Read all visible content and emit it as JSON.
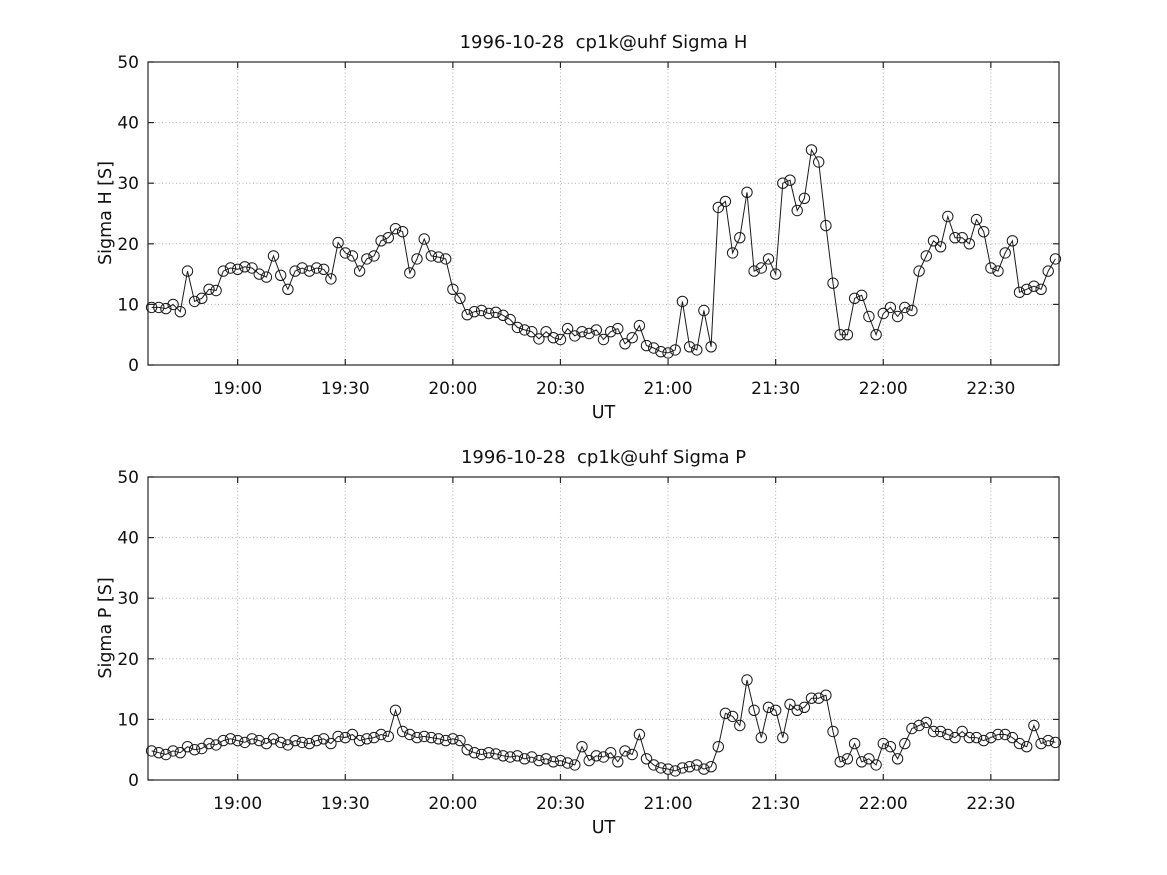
{
  "figure": {
    "background": "#ffffff",
    "text_color": "#111111"
  },
  "chart_data": [
    {
      "type": "line",
      "title": "1996-10-28  cp1k@uhf Sigma H",
      "xlabel": "UT",
      "ylabel": "Sigma H [S]",
      "ylim": [
        0,
        50
      ],
      "yticks": [
        0,
        10,
        20,
        30,
        40,
        50
      ],
      "xlim_min": [
        1115,
        1369
      ],
      "xticks_min": [
        1140,
        1170,
        1200,
        1230,
        1260,
        1290,
        1320,
        1350
      ],
      "xtick_labels": [
        "19:00",
        "19:30",
        "20:00",
        "20:30",
        "21:00",
        "21:30",
        "22:00",
        "22:30"
      ],
      "x_start_min": 1116,
      "x_step_min": 2,
      "grid": true,
      "legend": "none",
      "marker": "open-circle",
      "line_color": "#1a1a1a",
      "axis_color": "#262626",
      "grid_color": "#b0b0b0",
      "values": [
        9.5,
        9.5,
        9.3,
        10,
        8.8,
        15.5,
        10.5,
        11,
        12.5,
        12.3,
        15.5,
        16,
        15.8,
        16.2,
        16,
        15,
        14.5,
        18,
        14.8,
        12.5,
        15.5,
        16,
        15.5,
        16,
        15.8,
        14.2,
        20.2,
        18.5,
        18,
        15.5,
        17.5,
        18,
        20.5,
        21,
        22.5,
        22,
        15.2,
        17.5,
        20.8,
        18,
        17.8,
        17.5,
        12.5,
        11,
        8.3,
        8.8,
        9,
        8.5,
        8.7,
        8.2,
        7.5,
        6.2,
        5.8,
        5.5,
        4.3,
        5.5,
        4.5,
        4.2,
        6,
        4.8,
        5.5,
        5.2,
        5.8,
        4.2,
        5.5,
        6,
        3.5,
        4.5,
        6.5,
        3.2,
        2.8,
        2.2,
        2,
        2.5,
        10.5,
        3,
        2.5,
        9,
        3,
        26,
        27,
        18.5,
        21,
        28.5,
        15.5,
        16,
        17.5,
        15,
        30,
        30.5,
        25.5,
        27.5,
        35.5,
        33.5,
        23,
        13.5,
        5,
        5,
        11,
        11.5,
        8,
        5,
        8.5,
        9.5,
        8,
        9.5,
        9,
        15.5,
        18,
        20.5,
        19.5,
        24.5,
        21,
        21,
        20,
        24,
        22,
        16,
        15.5,
        18.5,
        20.5,
        12,
        12.5,
        13,
        12.5,
        15.5,
        17.5
      ]
    },
    {
      "type": "line",
      "title": "1996-10-28  cp1k@uhf Sigma P",
      "xlabel": "UT",
      "ylabel": "Sigma P [S]",
      "ylim": [
        0,
        50
      ],
      "yticks": [
        0,
        10,
        20,
        30,
        40,
        50
      ],
      "xlim_min": [
        1115,
        1369
      ],
      "xticks_min": [
        1140,
        1170,
        1200,
        1230,
        1260,
        1290,
        1320,
        1350
      ],
      "xtick_labels": [
        "19:00",
        "19:30",
        "20:00",
        "20:30",
        "21:00",
        "21:30",
        "22:00",
        "22:30"
      ],
      "x_start_min": 1116,
      "x_step_min": 2,
      "grid": true,
      "legend": "none",
      "marker": "open-circle",
      "line_color": "#1a1a1a",
      "axis_color": "#262626",
      "grid_color": "#b0b0b0",
      "values": [
        4.8,
        4.5,
        4.2,
        4.8,
        4.5,
        5.5,
        5,
        5.2,
        6,
        5.8,
        6.5,
        6.8,
        6.5,
        6.2,
        6.8,
        6.5,
        6,
        6.8,
        6.2,
        5.8,
        6.5,
        6.2,
        6,
        6.5,
        6.8,
        6,
        7.2,
        7,
        7.5,
        6.5,
        6.8,
        7,
        7.5,
        7.2,
        11.5,
        8,
        7.5,
        7,
        7.2,
        7,
        6.8,
        6.5,
        6.8,
        6.5,
        5,
        4.5,
        4.2,
        4.5,
        4.3,
        4,
        3.8,
        4,
        3.5,
        3.8,
        3.2,
        3.5,
        3,
        3.2,
        2.8,
        2.5,
        5.5,
        3.2,
        4,
        3.8,
        4.5,
        3,
        4.8,
        4.2,
        7.5,
        3.5,
        2.5,
        2,
        1.8,
        1.5,
        2,
        2.2,
        2.5,
        1.8,
        2.2,
        5.5,
        11,
        10.5,
        9,
        16.5,
        11.5,
        7,
        12,
        11.5,
        7,
        12.5,
        11.5,
        12,
        13.5,
        13.5,
        14,
        8,
        3,
        3.5,
        6,
        3,
        3.5,
        2.5,
        6,
        5.5,
        3.5,
        6,
        8.5,
        9,
        9.5,
        8,
        8,
        7.5,
        7,
        8,
        7,
        7,
        6.5,
        7,
        7.5,
        7.5,
        7,
        6,
        5.5,
        9,
        6,
        6.5,
        6.2
      ]
    }
  ]
}
